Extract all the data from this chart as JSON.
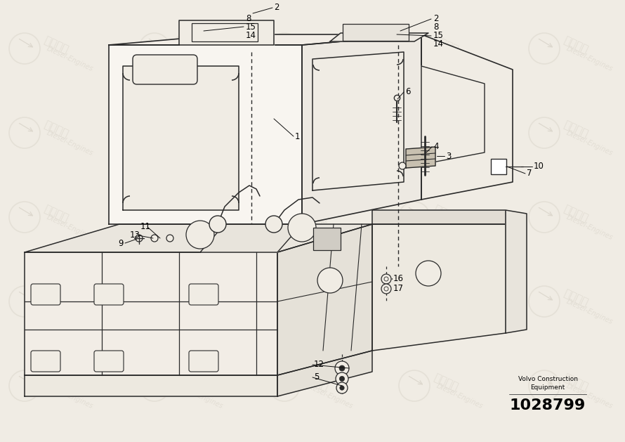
{
  "part_number": "1028799",
  "manufacturer_line1": "Volvo Construction",
  "manufacturer_line2": "Equipment",
  "bg_color": "#f0ece4",
  "drawing_color": "#2a2a2a",
  "wm_color": "#ddd8ce",
  "figsize": [
    8.9,
    6.29
  ],
  "dpi": 100,
  "wm_text1": "紫发动力",
  "wm_text2": "Diesel-Engines"
}
